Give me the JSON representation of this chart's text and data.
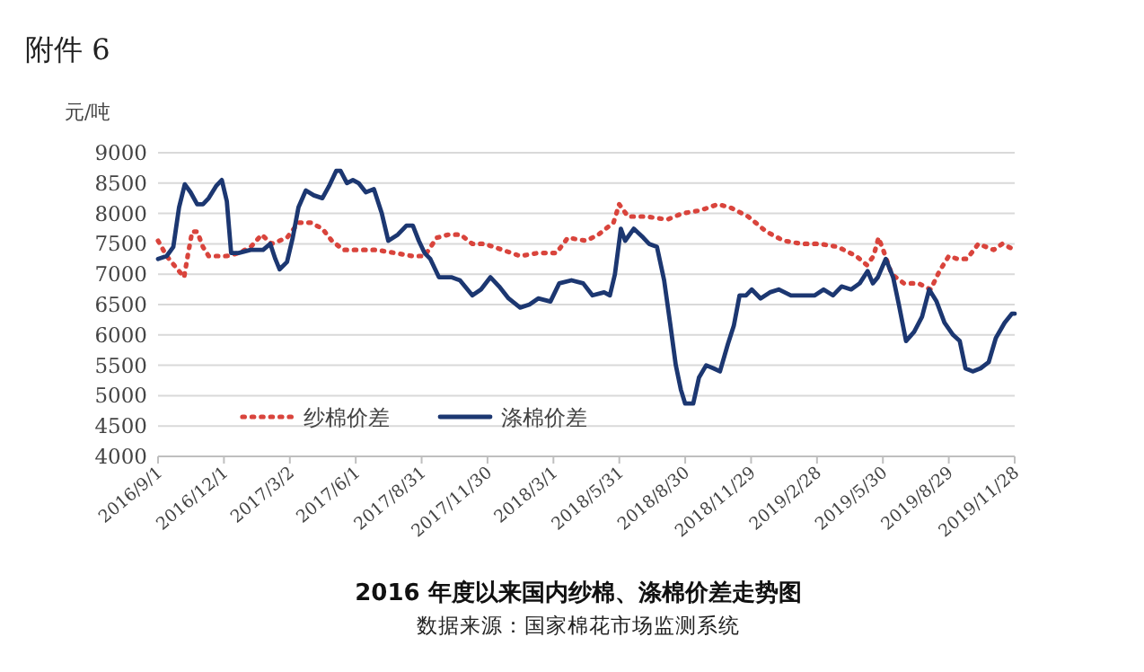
{
  "chart_data": {
    "type": "line",
    "title": "2016 年度以来国内纱棉、涤棉价差走势图",
    "ylabel": "元/吨",
    "annotations": [
      "附件 6",
      "数据来源：国家棉花市场监测系统"
    ],
    "xlim": [
      "2016-09-01",
      "2019-11-28"
    ],
    "xticks": [
      {
        "value": "2016-09-01",
        "label": "2016/9/1"
      },
      {
        "value": "2016-12-01",
        "label": "2016/12/1"
      },
      {
        "value": "2017-03-02",
        "label": "2017/3/2"
      },
      {
        "value": "2017-06-01",
        "label": "2017/6/1"
      },
      {
        "value": "2017-08-31",
        "label": "2017/8/31"
      },
      {
        "value": "2017-11-30",
        "label": "2017/11/30"
      },
      {
        "value": "2018-03-01",
        "label": "2018/3/1"
      },
      {
        "value": "2018-05-31",
        "label": "2018/5/31"
      },
      {
        "value": "2018-08-30",
        "label": "2018/8/30"
      },
      {
        "value": "2018-11-29",
        "label": "2018/11/29"
      },
      {
        "value": "2019-02-28",
        "label": "2019/2/28"
      },
      {
        "value": "2019-05-30",
        "label": "2019/5/30"
      },
      {
        "value": "2019-08-29",
        "label": "2019/8/29"
      },
      {
        "value": "2019-11-28",
        "label": "2019/11/28"
      }
    ],
    "ylim": [
      4000,
      9000
    ],
    "yticks": [
      4000,
      4500,
      5000,
      5500,
      6000,
      6500,
      7000,
      7500,
      8000,
      8500,
      9000
    ],
    "grid": "y",
    "legend": "bottom left",
    "series": [
      {
        "name": "纱棉价差",
        "color": "#d9443c",
        "line_style": "dotted",
        "x": [
          "2016-09-01",
          "2016-09-13",
          "2016-09-23",
          "2016-09-30",
          "2016-10-07",
          "2016-10-12",
          "2016-10-18",
          "2016-10-25",
          "2016-11-02",
          "2016-11-10",
          "2016-11-23",
          "2016-12-05",
          "2016-12-22",
          "2017-01-07",
          "2017-01-22",
          "2017-02-05",
          "2017-02-26",
          "2017-03-14",
          "2017-03-31",
          "2017-04-16",
          "2017-04-29",
          "2017-05-15",
          "2017-06-05",
          "2017-06-30",
          "2017-07-25",
          "2017-08-18",
          "2017-09-04",
          "2017-09-21",
          "2017-10-07",
          "2017-10-24",
          "2017-11-09",
          "2017-11-26",
          "2017-12-21",
          "2018-01-14",
          "2018-02-08",
          "2018-03-05",
          "2018-03-21",
          "2018-04-15",
          "2018-05-02",
          "2018-05-23",
          "2018-05-31",
          "2018-06-12",
          "2018-07-07",
          "2018-08-05",
          "2018-08-26",
          "2018-09-20",
          "2018-10-14",
          "2018-10-31",
          "2018-11-25",
          "2018-12-20",
          "2019-01-13",
          "2019-02-07",
          "2019-03-04",
          "2019-03-29",
          "2019-04-23",
          "2019-05-08",
          "2019-05-17",
          "2019-05-24",
          "2019-06-01",
          "2019-06-11",
          "2019-06-28",
          "2019-07-18",
          "2019-08-04",
          "2019-08-16",
          "2019-08-29",
          "2019-09-10",
          "2019-09-23",
          "2019-10-09",
          "2019-10-30",
          "2019-11-11",
          "2019-11-28"
        ],
        "values": [
          7550,
          7300,
          7150,
          7050,
          6950,
          7300,
          7700,
          7700,
          7450,
          7300,
          7300,
          7300,
          7350,
          7450,
          7650,
          7500,
          7600,
          7850,
          7850,
          7750,
          7550,
          7400,
          7400,
          7400,
          7350,
          7300,
          7300,
          7600,
          7650,
          7650,
          7500,
          7500,
          7400,
          7300,
          7350,
          7350,
          7600,
          7550,
          7650,
          7850,
          8150,
          7950,
          7950,
          7900,
          8000,
          8050,
          8150,
          8100,
          7950,
          7700,
          7550,
          7500,
          7500,
          7450,
          7300,
          7150,
          7300,
          7600,
          7350,
          7000,
          6850,
          6850,
          6750,
          7050,
          7300,
          7250,
          7250,
          7500,
          7400,
          7500,
          7400
        ]
      },
      {
        "name": "涤棉价差",
        "color": "#1c3771",
        "line_style": "solid",
        "x": [
          "2016-09-01",
          "2016-09-13",
          "2016-09-22",
          "2016-09-30",
          "2016-10-08",
          "2016-10-16",
          "2016-10-25",
          "2016-11-02",
          "2016-11-10",
          "2016-11-20",
          "2016-11-28",
          "2016-12-05",
          "2016-12-11",
          "2016-12-21",
          "2017-01-07",
          "2017-01-24",
          "2017-02-03",
          "2017-02-10",
          "2017-02-16",
          "2017-02-26",
          "2017-03-06",
          "2017-03-14",
          "2017-03-24",
          "2017-04-04",
          "2017-04-16",
          "2017-04-25",
          "2017-05-05",
          "2017-05-11",
          "2017-05-20",
          "2017-05-28",
          "2017-06-05",
          "2017-06-15",
          "2017-06-26",
          "2017-07-07",
          "2017-07-16",
          "2017-07-29",
          "2017-08-10",
          "2017-08-19",
          "2017-08-27",
          "2017-09-04",
          "2017-09-12",
          "2017-09-24",
          "2017-10-11",
          "2017-10-23",
          "2017-11-09",
          "2017-11-21",
          "2017-12-04",
          "2017-12-16",
          "2017-12-29",
          "2018-01-14",
          "2018-01-27",
          "2018-02-08",
          "2018-02-25",
          "2018-03-09",
          "2018-03-26",
          "2018-04-11",
          "2018-04-24",
          "2018-05-10",
          "2018-05-18",
          "2018-05-25",
          "2018-06-02",
          "2018-06-08",
          "2018-06-20",
          "2018-07-03",
          "2018-07-11",
          "2018-07-22",
          "2018-08-01",
          "2018-08-09",
          "2018-08-17",
          "2018-08-24",
          "2018-08-30",
          "2018-09-10",
          "2018-09-18",
          "2018-09-28",
          "2018-10-08",
          "2018-10-17",
          "2018-10-28",
          "2018-11-05",
          "2018-11-13",
          "2018-11-22",
          "2018-11-30",
          "2018-12-12",
          "2018-12-25",
          "2019-01-06",
          "2019-01-23",
          "2019-02-08",
          "2019-02-25",
          "2019-03-09",
          "2019-03-22",
          "2019-04-03",
          "2019-04-16",
          "2019-04-28",
          "2019-05-09",
          "2019-05-16",
          "2019-05-23",
          "2019-06-03",
          "2019-06-13",
          "2019-06-21",
          "2019-07-01",
          "2019-07-12",
          "2019-07-23",
          "2019-08-02",
          "2019-08-12",
          "2019-08-23",
          "2019-09-04",
          "2019-09-13",
          "2019-09-21",
          "2019-10-01",
          "2019-10-12",
          "2019-10-23",
          "2019-11-02",
          "2019-11-14",
          "2019-11-24",
          "2019-11-28"
        ],
        "values": [
          7250,
          7300,
          7450,
          8100,
          8480,
          8350,
          8150,
          8150,
          8250,
          8450,
          8550,
          8200,
          7350,
          7350,
          7400,
          7400,
          7500,
          7250,
          7080,
          7200,
          7600,
          8100,
          8380,
          8300,
          8250,
          8450,
          8700,
          8700,
          8500,
          8550,
          8500,
          8350,
          8400,
          8000,
          7550,
          7650,
          7800,
          7800,
          7550,
          7350,
          7250,
          6950,
          6950,
          6900,
          6650,
          6750,
          6950,
          6800,
          6600,
          6450,
          6500,
          6600,
          6550,
          6850,
          6900,
          6850,
          6650,
          6700,
          6650,
          7000,
          7750,
          7550,
          7750,
          7600,
          7500,
          7450,
          6900,
          6200,
          5500,
          5100,
          4870,
          4870,
          5300,
          5500,
          5450,
          5400,
          5850,
          6150,
          6650,
          6650,
          6750,
          6600,
          6700,
          6750,
          6650,
          6650,
          6650,
          6750,
          6650,
          6800,
          6750,
          6850,
          7050,
          6850,
          6950,
          7250,
          6950,
          6500,
          5900,
          6050,
          6300,
          6750,
          6550,
          6200,
          6000,
          5900,
          5450,
          5400,
          5450,
          5550,
          5950,
          6200,
          6350,
          6350
        ]
      }
    ]
  }
}
